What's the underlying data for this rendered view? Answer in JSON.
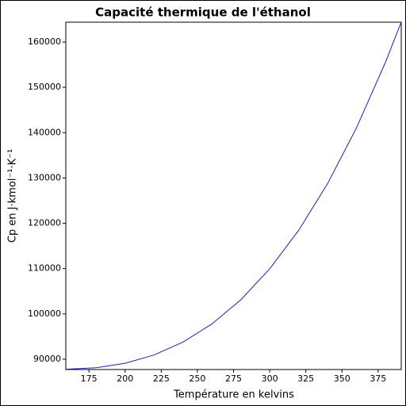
{
  "chart_data": {
    "type": "line",
    "title": "Capacité thermique de l'éthanol",
    "x_label": "Température en kelvins",
    "y_label": "Cp en J·kmol⁻¹·K⁻¹",
    "x": [
      159,
      180,
      200,
      220,
      240,
      260,
      280,
      300,
      320,
      340,
      360,
      380,
      391
    ],
    "series": [
      {
        "color": "#1f1fb4",
        "values": [
          87800,
          88110,
          89100,
          90930,
          93770,
          97770,
          103100,
          109940,
          118420,
          128730,
          141030,
          155470,
          164400
        ]
      }
    ],
    "xlim": [
      159,
      391
    ],
    "ylim": [
      87725,
      164375
    ],
    "xticks": [
      175,
      200,
      225,
      250,
      275,
      300,
      325,
      350,
      375
    ],
    "yticks": [
      90000,
      100000,
      110000,
      120000,
      130000,
      140000,
      150000,
      160000
    ],
    "grid": false
  }
}
